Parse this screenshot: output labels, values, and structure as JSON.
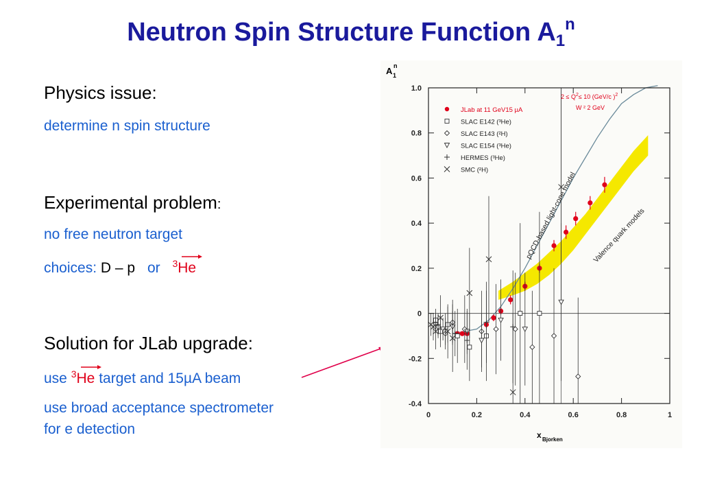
{
  "slide": {
    "title_main": "Neutron Spin Structure Function  A",
    "title_sub": "1",
    "title_sup": "n",
    "physics_issue": {
      "heading": "Physics issue:",
      "text": "determine n spin structure"
    },
    "experimental_problem": {
      "heading": "Experimental problem",
      "heading_colon": ":",
      "line1": "no free neutron target",
      "choices_label": "choices:",
      "choices_dp": "D – p",
      "choices_or": "or",
      "he_sup": "3",
      "he": "He"
    },
    "solution": {
      "heading": "Solution for JLab upgrade:",
      "line1_use": "use",
      "line1_sup": "3",
      "line1_he": "He",
      "line1_rest": "target and 15µA beam",
      "line2": "use broad acceptance spectrometer",
      "line3": "for e detection"
    }
  },
  "colors": {
    "title": "#1a1a9c",
    "blue_text": "#1a5fcf",
    "red": "#e0001a",
    "band": "#f5e800",
    "arrow": "#e0004a"
  },
  "chart_data": {
    "type": "scatter",
    "ylabel": "A",
    "ylabel_sub": "1",
    "ylabel_sup": "n",
    "xlabel": "x",
    "xlabel_sub": "Bjorken",
    "xlim": [
      0,
      1
    ],
    "ylim": [
      -0.4,
      1.0
    ],
    "x_ticks": [
      "0",
      "0.2",
      "0.4",
      "0.6",
      "0.8",
      "1"
    ],
    "x_tick_values": [
      0,
      0.2,
      0.4,
      0.6,
      0.8,
      1
    ],
    "y_ticks": [
      "-0.4",
      "-0.2",
      "0",
      "0.2",
      "0.4",
      "0.6",
      "0.8",
      "1.0"
    ],
    "y_tick_values": [
      -0.4,
      -0.2,
      0,
      0.2,
      0.4,
      0.6,
      0.8,
      1.0
    ],
    "kinematics_line1": "2  ≤ Q",
    "kinematics_line1_sup": "2",
    "kinematics_line1_rest": "≤ 10 (GeV/c )",
    "kinematics_line1_sup2": "2",
    "kinematics_line2": "W ² 2  GeV",
    "legend": [
      {
        "marker": "dot",
        "label": "JLab at 11  GeV15 µA"
      },
      {
        "marker": "square",
        "label": "SLAC E142 (³He)"
      },
      {
        "marker": "diamond",
        "label": "SLAC E143 (²H)"
      },
      {
        "marker": "triangle",
        "label": "SLAC E154  (³He)"
      },
      {
        "marker": "plus",
        "label": "HERMES (³He)"
      },
      {
        "marker": "cross",
        "label": "SMC (²H)"
      }
    ],
    "curve_label": "pQCD-based light-cone model",
    "band_label": "Valence quark models",
    "series": [
      {
        "name": "JLab at 11  GeV15 µA",
        "marker": "dot",
        "points": [
          [
            0.12,
            -0.09,
            0.01
          ],
          [
            0.14,
            -0.09,
            0.01
          ],
          [
            0.16,
            -0.09,
            0.01
          ],
          [
            0.24,
            -0.05,
            0.015
          ],
          [
            0.27,
            -0.02,
            0.015
          ],
          [
            0.3,
            0.01,
            0.015
          ],
          [
            0.34,
            0.06,
            0.02
          ],
          [
            0.4,
            0.12,
            0.02
          ],
          [
            0.46,
            0.2,
            0.02
          ],
          [
            0.52,
            0.3,
            0.025
          ],
          [
            0.57,
            0.36,
            0.03
          ],
          [
            0.61,
            0.42,
            0.03
          ],
          [
            0.67,
            0.49,
            0.03
          ],
          [
            0.73,
            0.57,
            0.035
          ]
        ]
      },
      {
        "name": "SLAC E142 (³He)",
        "marker": "square",
        "points": [
          [
            0.03,
            -0.03,
            0.05
          ],
          [
            0.05,
            -0.08,
            0.07
          ],
          [
            0.08,
            -0.05,
            0.08
          ],
          [
            0.12,
            -0.1,
            0.12
          ],
          [
            0.17,
            -0.15,
            0.15
          ],
          [
            0.24,
            -0.1,
            0.2
          ],
          [
            0.38,
            0.0,
            0.4
          ],
          [
            0.46,
            0.0,
            0.45
          ]
        ]
      },
      {
        "name": "SLAC E143 (²H)",
        "marker": "diamond",
        "points": [
          [
            0.04,
            -0.06,
            0.05
          ],
          [
            0.07,
            -0.09,
            0.07
          ],
          [
            0.1,
            -0.04,
            0.1
          ],
          [
            0.15,
            -0.07,
            0.15
          ],
          [
            0.22,
            -0.08,
            0.18
          ],
          [
            0.28,
            -0.07,
            0.2
          ],
          [
            0.36,
            -0.07,
            0.25
          ],
          [
            0.43,
            -0.15,
            0.25
          ],
          [
            0.52,
            -0.1,
            0.3
          ],
          [
            0.62,
            -0.28,
            0.35
          ]
        ]
      },
      {
        "name": "SLAC E154  (³He)",
        "marker": "triangle",
        "points": [
          [
            0.03,
            -0.05,
            0.04
          ],
          [
            0.06,
            -0.07,
            0.05
          ],
          [
            0.1,
            -0.06,
            0.07
          ],
          [
            0.16,
            -0.08,
            0.1
          ],
          [
            0.22,
            -0.12,
            0.12
          ],
          [
            0.3,
            -0.03,
            0.18
          ],
          [
            0.4,
            -0.07,
            0.25
          ],
          [
            0.55,
            0.05,
            0.35
          ]
        ]
      },
      {
        "name": "HERMES (³He)",
        "marker": "plus",
        "points": [
          [
            0.04,
            -0.05,
            0.05
          ],
          [
            0.07,
            -0.07,
            0.07
          ],
          [
            0.11,
            -0.09,
            0.1
          ],
          [
            0.16,
            -0.12,
            0.13
          ],
          [
            0.24,
            -0.04,
            0.18
          ],
          [
            0.35,
            -0.06,
            0.25
          ]
        ]
      },
      {
        "name": "SMC (²H)",
        "marker": "cross",
        "points": [
          [
            0.01,
            -0.05,
            0.05
          ],
          [
            0.02,
            -0.06,
            0.06
          ],
          [
            0.03,
            -0.08,
            0.08
          ],
          [
            0.05,
            -0.02,
            0.1
          ],
          [
            0.08,
            -0.08,
            0.12
          ],
          [
            0.1,
            -0.11,
            0.15
          ],
          [
            0.17,
            0.09,
            0.2
          ],
          [
            0.25,
            0.24,
            0.28
          ],
          [
            0.35,
            -0.35,
            0.35
          ],
          [
            0.55,
            0.56,
            0.5
          ]
        ]
      }
    ],
    "model_curve": [
      [
        0.1,
        -0.09
      ],
      [
        0.2,
        -0.07
      ],
      [
        0.25,
        -0.03
      ],
      [
        0.3,
        0.03
      ],
      [
        0.35,
        0.11
      ],
      [
        0.4,
        0.2
      ],
      [
        0.45,
        0.3
      ],
      [
        0.5,
        0.4
      ],
      [
        0.55,
        0.5
      ],
      [
        0.6,
        0.6
      ],
      [
        0.65,
        0.69
      ],
      [
        0.7,
        0.78
      ],
      [
        0.75,
        0.86
      ],
      [
        0.8,
        0.93
      ],
      [
        0.85,
        0.97
      ],
      [
        0.9,
        1.0
      ],
      [
        0.95,
        1.01
      ]
    ],
    "band_upper": [
      [
        0.29,
        0.1
      ],
      [
        0.35,
        0.14
      ],
      [
        0.4,
        0.18
      ],
      [
        0.45,
        0.22
      ],
      [
        0.5,
        0.27
      ],
      [
        0.55,
        0.32
      ],
      [
        0.6,
        0.38
      ],
      [
        0.65,
        0.44
      ],
      [
        0.7,
        0.51
      ],
      [
        0.75,
        0.58
      ],
      [
        0.8,
        0.65
      ],
      [
        0.85,
        0.72
      ],
      [
        0.91,
        0.79
      ]
    ],
    "band_lower": [
      [
        0.29,
        0.06
      ],
      [
        0.35,
        0.08
      ],
      [
        0.4,
        0.1
      ],
      [
        0.45,
        0.13
      ],
      [
        0.5,
        0.17
      ],
      [
        0.55,
        0.22
      ],
      [
        0.6,
        0.28
      ],
      [
        0.65,
        0.35
      ],
      [
        0.7,
        0.42
      ],
      [
        0.75,
        0.49
      ],
      [
        0.8,
        0.56
      ],
      [
        0.85,
        0.63
      ],
      [
        0.91,
        0.7
      ]
    ]
  }
}
